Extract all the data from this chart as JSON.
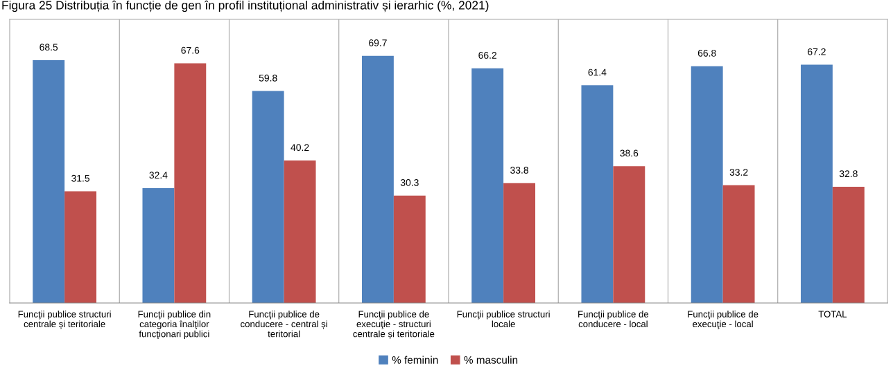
{
  "chart_data": {
    "type": "bar",
    "title": "Figura 25 Distribuția în funcție de gen în profil instituțional administrativ și ierarhic (%, 2021)",
    "categories": [
      "Funcţii publice structuri\ncentrale și teritoriale",
      "Funcţii publice din\ncategoria înalţilor\nfuncţionari publici",
      "Funcţii publice de\nconducere - central și\nteritorial",
      "Funcţii publice de\nexecuţie - structuri\ncentrale și teritoriale",
      "Funcţii publice structuri\nlocale",
      "Funcţii publice de\nconducere - local",
      "Funcţii publice de\nexecuţie - local",
      "TOTAL"
    ],
    "series": [
      {
        "name": "% feminin",
        "color": "#4f81bd",
        "values": [
          68.5,
          32.4,
          59.8,
          69.7,
          66.2,
          61.4,
          66.8,
          67.2
        ]
      },
      {
        "name": "% masculin",
        "color": "#c0504d",
        "values": [
          31.5,
          67.6,
          40.2,
          30.3,
          33.8,
          38.6,
          33.2,
          32.8
        ]
      }
    ],
    "ylim": [
      0,
      80
    ],
    "tick_labels": "x",
    "data_labels": true,
    "grid": "x",
    "legend": "bottom"
  }
}
